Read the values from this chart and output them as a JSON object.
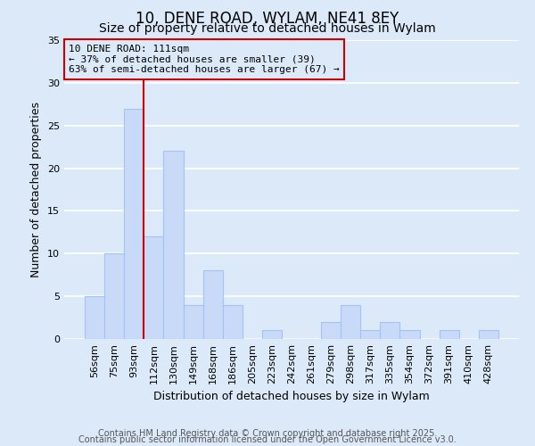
{
  "title": "10, DENE ROAD, WYLAM, NE41 8EY",
  "subtitle": "Size of property relative to detached houses in Wylam",
  "xlabel": "Distribution of detached houses by size in Wylam",
  "ylabel": "Number of detached properties",
  "categories": [
    "56sqm",
    "75sqm",
    "93sqm",
    "112sqm",
    "130sqm",
    "149sqm",
    "168sqm",
    "186sqm",
    "205sqm",
    "223sqm",
    "242sqm",
    "261sqm",
    "279sqm",
    "298sqm",
    "317sqm",
    "335sqm",
    "354sqm",
    "372sqm",
    "391sqm",
    "410sqm",
    "428sqm"
  ],
  "values": [
    5,
    10,
    27,
    12,
    22,
    4,
    8,
    4,
    0,
    1,
    0,
    0,
    2,
    4,
    1,
    2,
    1,
    0,
    1,
    0,
    1
  ],
  "bar_color": "#c9daf8",
  "bar_edge_color": "#a4c2f4",
  "bar_width": 1.0,
  "vline_color": "#cc0000",
  "vline_position": 2.5,
  "annotation_line1": "10 DENE ROAD: 111sqm",
  "annotation_line2": "← 37% of detached houses are smaller (39)",
  "annotation_line3": "63% of semi-detached houses are larger (67) →",
  "annotation_box_color": "#cc0000",
  "ylim": [
    0,
    35
  ],
  "yticks": [
    0,
    5,
    10,
    15,
    20,
    25,
    30,
    35
  ],
  "background_color": "#dce9f9",
  "plot_bg_color": "#dce9f9",
  "grid_color": "#ffffff",
  "footer_line1": "Contains HM Land Registry data © Crown copyright and database right 2025.",
  "footer_line2": "Contains public sector information licensed under the Open Government Licence v3.0.",
  "title_fontsize": 12,
  "subtitle_fontsize": 10,
  "xlabel_fontsize": 9,
  "ylabel_fontsize": 9,
  "tick_fontsize": 8,
  "annotation_fontsize": 8,
  "footer_fontsize": 7
}
